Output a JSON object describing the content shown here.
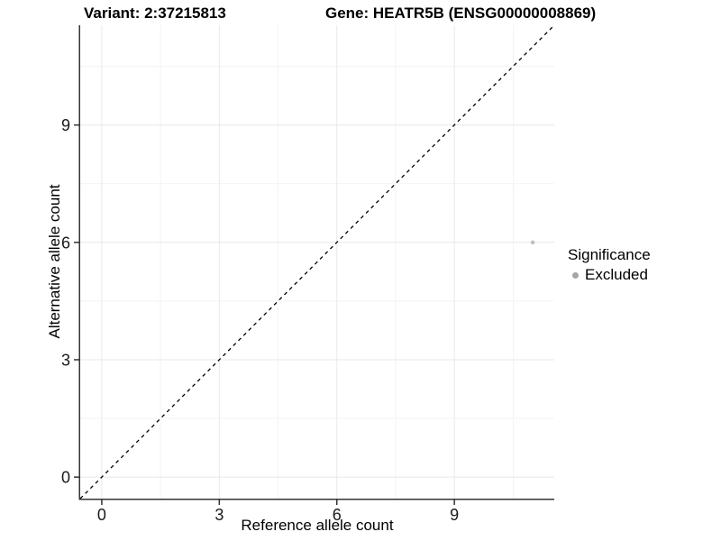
{
  "header": {
    "variant_title": "Variant: 2:37215813",
    "gene_title": "Gene: HEATR5B (ENSG00000008869)"
  },
  "chart_data": {
    "type": "scatter",
    "xlabel": "Reference allele count",
    "ylabel": "Alternative allele count",
    "xlim": [
      -0.55,
      11.55
    ],
    "ylim": [
      -0.55,
      11.55
    ],
    "x_ticks": [
      0,
      3,
      6,
      9
    ],
    "y_ticks": [
      0,
      3,
      6,
      9
    ],
    "x_minor_ticks": [
      1.5,
      4.5,
      7.5,
      10.5
    ],
    "y_minor_ticks": [
      1.5,
      4.5,
      7.5,
      10.5
    ],
    "grid": true,
    "points": [
      {
        "x": 11,
        "y": 6,
        "series": "Excluded"
      }
    ],
    "reference_line": {
      "type": "identity",
      "slope": 1,
      "intercept": 0,
      "style": "dashed"
    },
    "legend": {
      "title": "Significance",
      "position": "right",
      "items": [
        {
          "label": "Excluded",
          "color": "#a6a6a6"
        }
      ]
    },
    "colors": {
      "point": "#bdbdbd",
      "grid_major": "#e8e8e8",
      "grid_minor": "#f3f3f3",
      "axis_line": "#333333",
      "tick_label": "#1a1a1a",
      "reference_line": "#000000"
    }
  }
}
